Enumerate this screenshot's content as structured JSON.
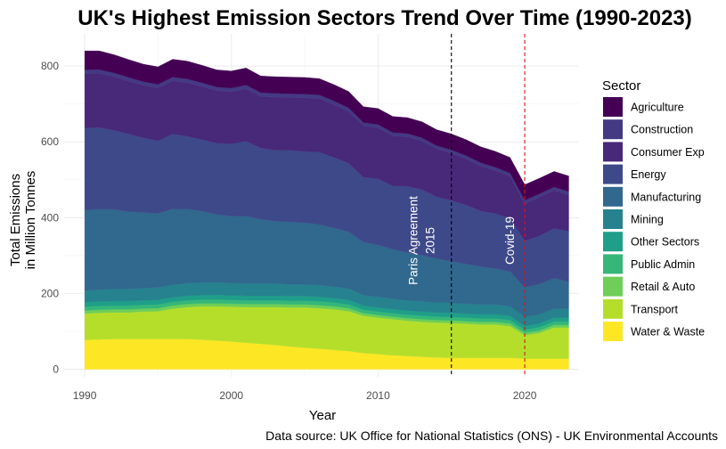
{
  "chart_data": {
    "type": "area",
    "stacked": true,
    "title": "UK's Highest Emission Sectors Trend Over Time (1990-2023)",
    "xlabel": "Year",
    "ylabel_lines": [
      "Total Emissions",
      "in Million Tonnes"
    ],
    "caption": "Data source: UK Office for National Statistics (ONS) - UK Environmental Accounts",
    "legend_title": "Sector",
    "legend_position": "right",
    "grid": true,
    "xlim": [
      1988.6,
      2023.7
    ],
    "ylim": [
      -20,
      885
    ],
    "x_ticks": [
      1990,
      2000,
      2010,
      2020
    ],
    "y_ticks": [
      0,
      200,
      400,
      600,
      800
    ],
    "x": [
      1990,
      1991,
      1992,
      1993,
      1994,
      1995,
      1996,
      1997,
      1998,
      1999,
      2000,
      2001,
      2002,
      2003,
      2004,
      2005,
      2006,
      2007,
      2008,
      2009,
      2010,
      2011,
      2012,
      2013,
      2014,
      2015,
      2016,
      2017,
      2018,
      2019,
      2020,
      2021,
      2022,
      2023
    ],
    "series": [
      {
        "name": "Water & Waste",
        "color": "#fde725",
        "values": [
          77,
          79,
          80,
          80,
          80,
          80,
          80,
          80,
          78,
          76,
          73,
          70,
          67,
          64,
          60,
          57,
          54,
          51,
          48,
          43,
          40,
          37,
          35,
          33,
          31,
          30,
          30,
          30,
          30,
          30,
          28,
          28,
          28,
          28
        ]
      },
      {
        "name": "Transport",
        "color": "#b5de2b",
        "values": [
          70,
          70,
          70,
          70,
          72,
          73,
          80,
          84,
          88,
          90,
          92,
          94,
          97,
          100,
          103,
          106,
          107,
          107,
          105,
          98,
          96,
          95,
          93,
          92,
          92,
          92,
          90,
          88,
          88,
          84,
          62,
          68,
          82,
          82
        ]
      },
      {
        "name": "Retail & Auto",
        "color": "#6ece58",
        "values": [
          8,
          8,
          8,
          8,
          8,
          8,
          8,
          8,
          8,
          8,
          8,
          8,
          8,
          8,
          8,
          8,
          8,
          8,
          8,
          7,
          7,
          7,
          7,
          7,
          7,
          7,
          7,
          7,
          7,
          7,
          6,
          6,
          7,
          7
        ]
      },
      {
        "name": "Public Admin",
        "color": "#35b779",
        "values": [
          10,
          10,
          10,
          10,
          10,
          10,
          10,
          10,
          10,
          10,
          10,
          10,
          10,
          10,
          10,
          10,
          10,
          10,
          10,
          9,
          9,
          9,
          9,
          9,
          9,
          9,
          9,
          9,
          9,
          9,
          8,
          9,
          9,
          9
        ]
      },
      {
        "name": "Other Sectors",
        "color": "#1f9e89",
        "values": [
          12,
          12,
          12,
          12,
          12,
          12,
          12,
          12,
          12,
          12,
          12,
          12,
          12,
          12,
          12,
          12,
          12,
          12,
          12,
          11,
          11,
          11,
          11,
          11,
          11,
          11,
          11,
          11,
          11,
          11,
          10,
          10,
          10,
          10
        ]
      },
      {
        "name": "Mining",
        "color": "#26828e",
        "values": [
          30,
          31,
          32,
          32,
          32,
          33,
          33,
          33,
          33,
          33,
          33,
          32,
          32,
          32,
          31,
          31,
          31,
          30,
          30,
          28,
          28,
          27,
          27,
          27,
          26,
          26,
          26,
          26,
          26,
          25,
          24,
          24,
          24,
          24
        ]
      },
      {
        "name": "Manufacturing",
        "color": "#31688e",
        "values": [
          213,
          213,
          210,
          204,
          200,
          195,
          200,
          196,
          188,
          180,
          176,
          178,
          170,
          165,
          165,
          163,
          160,
          155,
          150,
          140,
          137,
          131,
          126,
          122,
          116,
          110,
          105,
          100,
          95,
          92,
          78,
          80,
          81,
          71
        ]
      },
      {
        "name": "Energy",
        "color": "#3e4989",
        "values": [
          217,
          215,
          209,
          205,
          197,
          192,
          198,
          192,
          189,
          188,
          191,
          198,
          188,
          187,
          189,
          188,
          191,
          186,
          181,
          171,
          175,
          167,
          175,
          173,
          163,
          161,
          156,
          147,
          145,
          141,
          123,
          127,
          131,
          133
        ]
      },
      {
        "name": "Consumer Exp",
        "color": "#482878",
        "values": [
          143,
          143,
          141,
          139,
          138,
          139,
          140,
          141,
          140,
          138,
          137,
          138,
          136,
          140,
          139,
          141,
          141,
          139,
          136,
          135,
          134,
          132,
          130,
          128,
          126,
          124,
          121,
          118,
          113,
          110,
          98,
          102,
          100,
          96
        ]
      },
      {
        "name": "Construction",
        "color": "#443983",
        "values": [
          10,
          10,
          10,
          10,
          10,
          10,
          10,
          10,
          10,
          10,
          10,
          10,
          10,
          10,
          10,
          10,
          10,
          10,
          10,
          9,
          9,
          9,
          9,
          9,
          9,
          9,
          9,
          9,
          9,
          9,
          9,
          9,
          9,
          9
        ]
      },
      {
        "name": "Agriculture",
        "color": "#440154",
        "values": [
          50,
          49,
          48,
          47,
          46,
          46,
          47,
          47,
          46,
          45,
          45,
          45,
          44,
          44,
          44,
          44,
          43,
          43,
          43,
          42,
          42,
          42,
          42,
          42,
          42,
          42,
          42,
          42,
          42,
          41,
          41,
          41,
          41,
          41
        ]
      }
    ],
    "legend_order": [
      "Agriculture",
      "Construction",
      "Consumer Exp",
      "Energy",
      "Manufacturing",
      "Mining",
      "Other Sectors",
      "Public Admin",
      "Retail & Auto",
      "Transport",
      "Water & Waste"
    ],
    "annotations": [
      {
        "x": 2015,
        "lines": [
          "Paris Agreement",
          "2015"
        ],
        "line_color": "#000000",
        "dash": "4,3"
      },
      {
        "x": 2020,
        "lines": [
          "Covid-19"
        ],
        "line_color": "#cc1a1a",
        "dash": "4,3"
      }
    ]
  }
}
